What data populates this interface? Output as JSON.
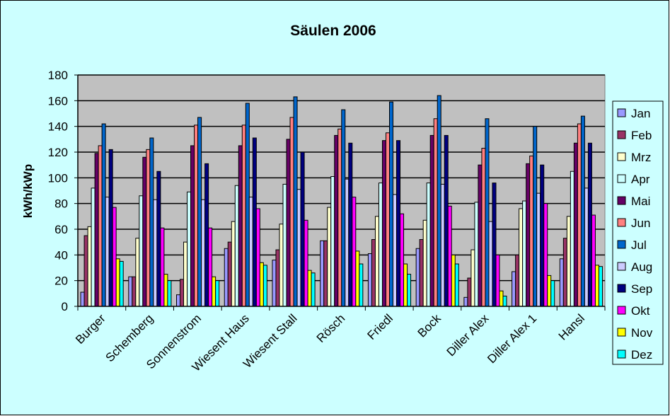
{
  "chart_data": {
    "type": "bar",
    "title": "Säulen 2006",
    "xlabel": "",
    "ylabel": "kWh/kWp",
    "ylim": [
      0,
      180
    ],
    "yticks": [
      0,
      20,
      40,
      60,
      80,
      100,
      120,
      140,
      160,
      180
    ],
    "grid": true,
    "legend_position": "right",
    "background_color": "#CCFFFF",
    "plot_background_color": "#C0C0C0",
    "categories": [
      "Burger",
      "Schemberg",
      "Sonnenstrom",
      "Wiesent Haus",
      "Wiesent Stall",
      "Rösch",
      "Friedl",
      "Bock",
      "Diller Alex",
      "Diller Alex 1",
      "Hansl"
    ],
    "series": [
      {
        "name": "Jan",
        "color": "#9999FF",
        "values": [
          11,
          23,
          9,
          45,
          36,
          51,
          41,
          45,
          7,
          27,
          37
        ]
      },
      {
        "name": "Feb",
        "color": "#993366",
        "values": [
          55,
          23,
          21,
          50,
          44,
          51,
          52,
          52,
          22,
          40,
          53
        ]
      },
      {
        "name": "Mrz",
        "color": "#FFFFCC",
        "values": [
          62,
          53,
          50,
          66,
          64,
          77,
          70,
          67,
          44,
          76,
          70
        ]
      },
      {
        "name": "Apr",
        "color": "#CCFFFF",
        "values": [
          92,
          86,
          89,
          94,
          95,
          101,
          96,
          96,
          81,
          82,
          105
        ]
      },
      {
        "name": "Mai",
        "color": "#660066",
        "values": [
          119,
          116,
          125,
          125,
          130,
          133,
          129,
          133,
          110,
          111,
          127
        ]
      },
      {
        "name": "Jun",
        "color": "#FF8080",
        "values": [
          125,
          122,
          141,
          141,
          147,
          138,
          135,
          146,
          123,
          117,
          142
        ]
      },
      {
        "name": "Jul",
        "color": "#0066CC",
        "values": [
          142,
          131,
          147,
          158,
          163,
          153,
          159,
          164,
          146,
          140,
          148
        ]
      },
      {
        "name": "Aug",
        "color": "#CCCCFF",
        "values": [
          85,
          83,
          83,
          85,
          91,
          99,
          87,
          95,
          66,
          88,
          92
        ]
      },
      {
        "name": "Sep",
        "color": "#000080",
        "values": [
          122,
          105,
          111,
          131,
          120,
          127,
          129,
          133,
          96,
          110,
          127
        ]
      },
      {
        "name": "Okt",
        "color": "#FF00FF",
        "values": [
          77,
          61,
          61,
          76,
          67,
          85,
          72,
          78,
          40,
          80,
          71
        ]
      },
      {
        "name": "Nov",
        "color": "#FFFF00",
        "values": [
          37,
          25,
          23,
          34,
          28,
          43,
          33,
          40,
          12,
          24,
          32
        ]
      },
      {
        "name": "Dez",
        "color": "#00FFFF",
        "values": [
          35,
          20,
          20,
          32,
          26,
          33,
          25,
          33,
          8,
          20,
          31
        ]
      }
    ]
  }
}
